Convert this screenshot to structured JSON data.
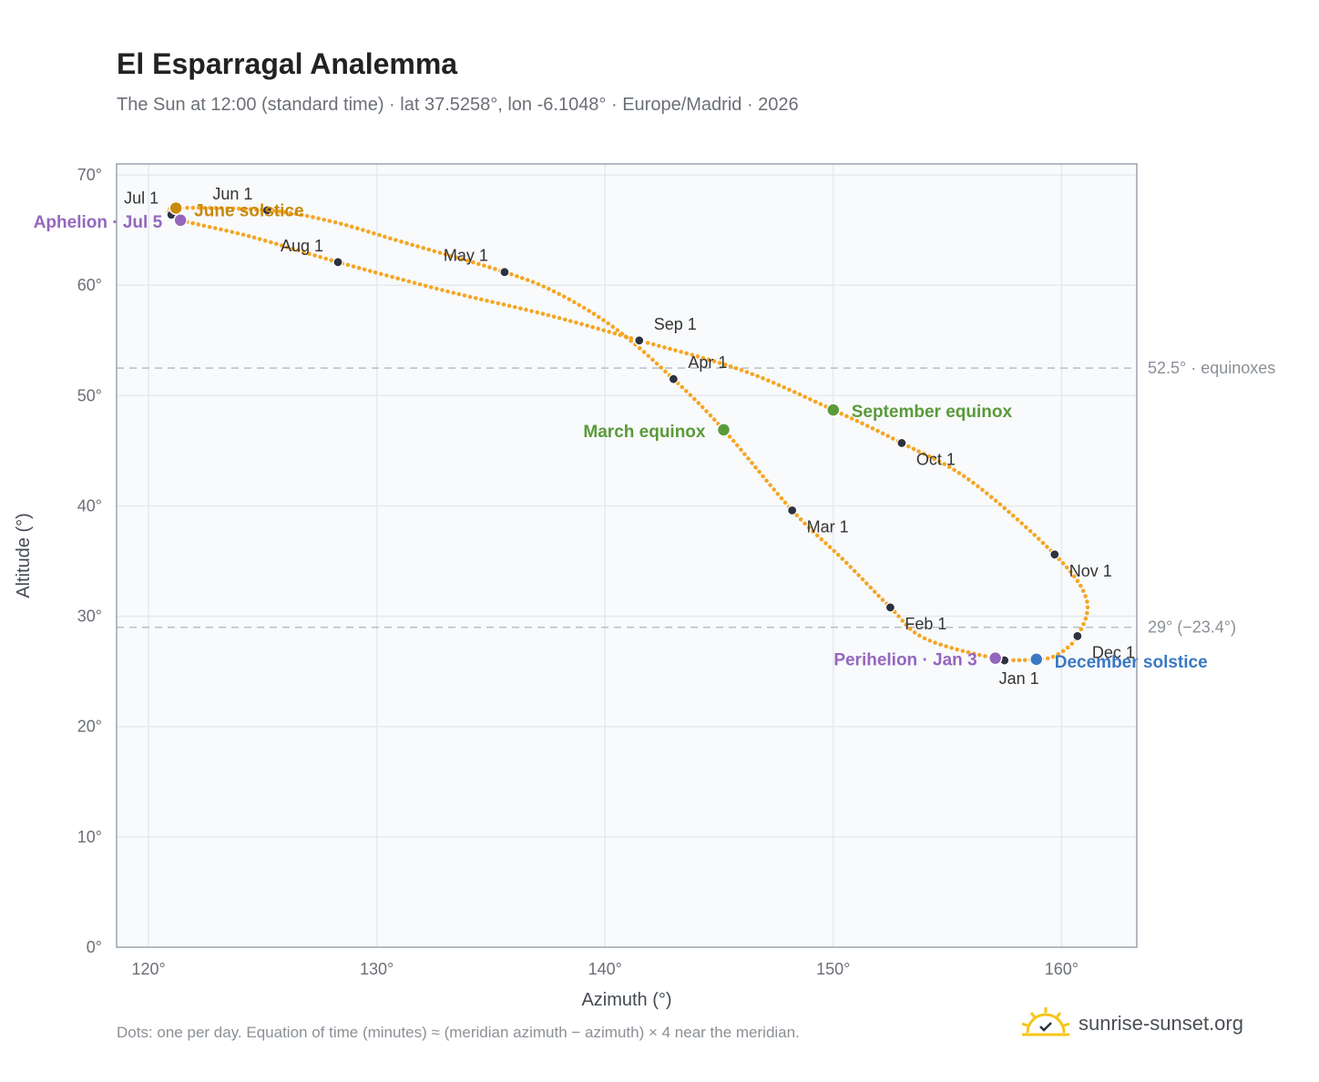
{
  "header": {
    "title": "El Esparragal Analemma",
    "subtitle": "The Sun at 12:00 (standard time) · lat 37.5258°, lon -6.1048° · Europe/Madrid · 2026"
  },
  "footer": {
    "note": "Dots: one per day. Equation of time (minutes) ≈ (meridian azimuth − azimuth) × 4 near the meridian.",
    "brand": "sunrise-sunset.org",
    "brand_icon": "sun-logo-icon"
  },
  "colors": {
    "path": "#f5a623",
    "month_marker": "#2d3240",
    "solstice_june": "#c8890f",
    "solstice_december": "#3b78c2",
    "equinox": "#5a9a3a",
    "aphelion_perihelion": "#9467bd",
    "grid": "#e6e9ee",
    "plot_bg": "#f8fafc",
    "frame": "#9aa3ad",
    "reference_line": "#b9bec5"
  },
  "chart_data": {
    "type": "scatter",
    "xlabel": "Azimuth (°)",
    "ylabel": "Altitude (°)",
    "xlim": [
      118.6,
      163.3
    ],
    "ylim": [
      0,
      71
    ],
    "x_ticks": [
      120,
      130,
      140,
      150,
      160
    ],
    "y_ticks": [
      0,
      10,
      20,
      30,
      40,
      50,
      60,
      70
    ],
    "x_tick_labels": [
      "120°",
      "130°",
      "140°",
      "150°",
      "160°"
    ],
    "y_tick_labels": [
      "0°",
      "10°",
      "20°",
      "30°",
      "40°",
      "50°",
      "60°",
      "70°"
    ],
    "grid": true,
    "reference_lines": [
      {
        "y": 52.5,
        "label": "52.5° · equinoxes"
      },
      {
        "y": 29.0,
        "label": "29° (−23.4°)"
      }
    ],
    "month_markers": [
      {
        "label": "Jan 1",
        "x": 157.5,
        "y": 26.0
      },
      {
        "label": "Feb 1",
        "x": 152.5,
        "y": 30.8
      },
      {
        "label": "Mar 1",
        "x": 148.2,
        "y": 39.6
      },
      {
        "label": "Apr 1",
        "x": 143.0,
        "y": 51.5
      },
      {
        "label": "May 1",
        "x": 135.6,
        "y": 61.2
      },
      {
        "label": "Jun 1",
        "x": 125.2,
        "y": 66.8
      },
      {
        "label": "Jul 1",
        "x": 121.0,
        "y": 66.4
      },
      {
        "label": "Aug 1",
        "x": 128.3,
        "y": 62.1
      },
      {
        "label": "Sep 1",
        "x": 141.5,
        "y": 55.0
      },
      {
        "label": "Oct 1",
        "x": 153.0,
        "y": 45.7
      },
      {
        "label": "Nov 1",
        "x": 159.7,
        "y": 35.6
      },
      {
        "label": "Dec 1",
        "x": 160.7,
        "y": 28.2
      }
    ],
    "events": [
      {
        "label": "June solstice",
        "x": 121.2,
        "y": 67.0,
        "color_key": "solstice_june"
      },
      {
        "label": "December solstice",
        "x": 158.9,
        "y": 26.1,
        "color_key": "solstice_december"
      },
      {
        "label": "March equinox",
        "x": 145.2,
        "y": 46.9,
        "color_key": "equinox"
      },
      {
        "label": "September equinox",
        "x": 150.0,
        "y": 48.7,
        "color_key": "equinox"
      },
      {
        "label": "Aphelion · Jul 5",
        "x": 121.4,
        "y": 65.9,
        "color_key": "aphelion_perihelion"
      },
      {
        "label": "Perihelion · Jan 3",
        "x": 157.1,
        "y": 26.2,
        "color_key": "aphelion_perihelion"
      }
    ],
    "path_points": [
      [
        158.9,
        26.1
      ],
      [
        157.1,
        26.2
      ],
      [
        154.0,
        28.0
      ],
      [
        152.5,
        30.8
      ],
      [
        150.5,
        35.0
      ],
      [
        148.2,
        39.6
      ],
      [
        145.2,
        46.9
      ],
      [
        143.0,
        51.5
      ],
      [
        140.5,
        56.0
      ],
      [
        138.0,
        59.2
      ],
      [
        135.6,
        61.2
      ],
      [
        131.0,
        64.0
      ],
      [
        128.0,
        65.8
      ],
      [
        125.2,
        66.8
      ],
      [
        121.2,
        67.0
      ],
      [
        121.0,
        66.4
      ],
      [
        121.4,
        65.9
      ],
      [
        124.5,
        64.4
      ],
      [
        128.3,
        62.1
      ],
      [
        133.0,
        59.5
      ],
      [
        137.5,
        57.3
      ],
      [
        141.5,
        55.0
      ],
      [
        146.0,
        52.3
      ],
      [
        150.0,
        48.7
      ],
      [
        153.0,
        45.7
      ],
      [
        156.0,
        42.3
      ],
      [
        159.7,
        35.6
      ],
      [
        161.1,
        31.5
      ],
      [
        160.7,
        28.2
      ],
      [
        159.8,
        26.5
      ],
      [
        158.9,
        26.1
      ]
    ]
  }
}
